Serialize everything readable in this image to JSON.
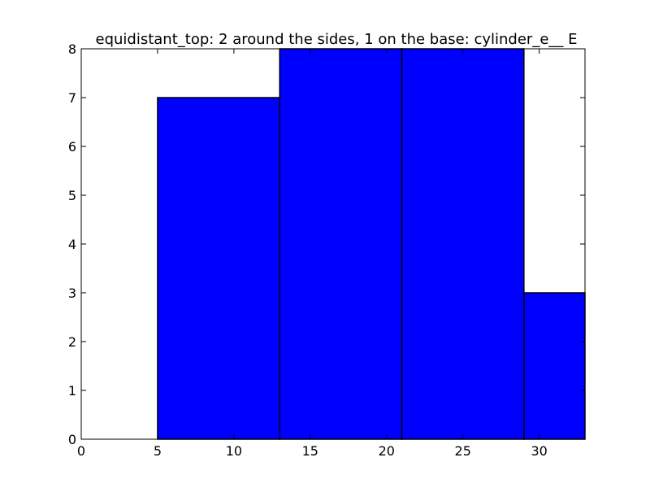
{
  "chart_data": {
    "type": "bar",
    "title": "equidistant_top: 2 around the sides, 1 on the base: cylinder_e__ E",
    "xlabel": "",
    "ylabel": "",
    "xlim": [
      0,
      33
    ],
    "ylim": [
      0,
      8
    ],
    "xticks": [
      0,
      5,
      10,
      15,
      20,
      25,
      30
    ],
    "yticks": [
      0,
      1,
      2,
      3,
      4,
      5,
      6,
      7,
      8
    ],
    "grid": false,
    "bar_color": "#0000ff",
    "bars": [
      {
        "x_start": 0,
        "x_end": 5,
        "value": 0
      },
      {
        "x_start": 5,
        "x_end": 13,
        "value": 7
      },
      {
        "x_start": 13,
        "x_end": 21,
        "value": 8
      },
      {
        "x_start": 21,
        "x_end": 29,
        "value": 8
      },
      {
        "x_start": 29,
        "x_end": 33,
        "value": 3
      }
    ]
  }
}
